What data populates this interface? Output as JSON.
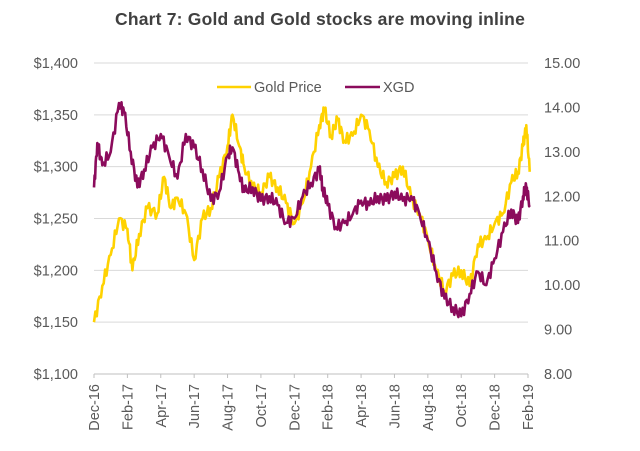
{
  "chart_data": {
    "type": "line",
    "title": "Chart 7: Gold and Gold stocks are moving inline",
    "xlabel": "",
    "ylabel_left": "",
    "ylabel_right": "",
    "x_tick_labels": [
      "Dec-16",
      "Feb-17",
      "Apr-17",
      "Jun-17",
      "Aug-17",
      "Oct-17",
      "Dec-17",
      "Feb-18",
      "Apr-18",
      "Jun-18",
      "Aug-18",
      "Oct-18",
      "Dec-18",
      "Feb-19"
    ],
    "x_unit": "months since Dec-16",
    "xlim": [
      0,
      26
    ],
    "y_left": {
      "ylim": [
        1100,
        1400
      ],
      "ticks": [
        1100,
        1150,
        1200,
        1250,
        1300,
        1350,
        1400
      ],
      "tick_labels": [
        "$1,100",
        "$1,150",
        "$1,200",
        "$1,250",
        "$1,300",
        "$1,350",
        "$1,400"
      ]
    },
    "y_right": {
      "ylim": [
        8,
        15
      ],
      "ticks": [
        8,
        9,
        10,
        11,
        12,
        13,
        14,
        15
      ],
      "tick_labels": [
        "8.00",
        "9.00",
        "10.00",
        "11.00",
        "12.00",
        "13.00",
        "14.00",
        "15.00"
      ]
    },
    "grid": true,
    "legend_position": "top-center",
    "series": [
      {
        "name": "Gold Price",
        "axis": "left",
        "color": "#FFD200",
        "x": [
          0,
          0.5,
          1.0,
          1.5,
          2.0,
          2.3,
          2.7,
          3.2,
          3.8,
          4.2,
          4.6,
          5.0,
          5.5,
          6.0,
          6.5,
          7.0,
          7.5,
          8.0,
          8.3,
          8.7,
          9.0,
          9.5,
          10.0,
          10.5,
          11.0,
          11.5,
          12.0,
          12.5,
          13.0,
          13.5,
          13.8,
          14.2,
          14.6,
          15.0,
          15.5,
          16.0,
          16.5,
          17.0,
          17.5,
          18.0,
          18.5,
          19.0,
          19.5,
          20.0,
          20.5,
          21.0,
          21.5,
          22.0,
          22.5,
          23.0,
          23.5,
          24.0,
          24.5,
          25.0,
          25.4,
          25.7,
          25.9,
          26.1
        ],
        "values": [
          1150,
          1185,
          1215,
          1250,
          1240,
          1200,
          1235,
          1260,
          1255,
          1290,
          1260,
          1270,
          1255,
          1210,
          1250,
          1260,
          1290,
          1320,
          1350,
          1320,
          1300,
          1280,
          1275,
          1290,
          1280,
          1265,
          1245,
          1265,
          1300,
          1340,
          1355,
          1330,
          1345,
          1325,
          1330,
          1350,
          1335,
          1300,
          1285,
          1290,
          1300,
          1270,
          1255,
          1230,
          1200,
          1180,
          1195,
          1200,
          1185,
          1225,
          1230,
          1245,
          1255,
          1285,
          1295,
          1320,
          1340,
          1295
        ]
      },
      {
        "name": "XGD",
        "axis": "right",
        "color": "#8B0B5C",
        "x": [
          0,
          0.2,
          0.5,
          1.0,
          1.5,
          1.8,
          2.2,
          2.6,
          3.0,
          3.5,
          4.0,
          4.5,
          5.0,
          5.5,
          6.0,
          6.5,
          7.0,
          7.5,
          8.0,
          8.3,
          8.7,
          9.0,
          9.5,
          10.0,
          10.5,
          11.0,
          11.5,
          12.0,
          12.5,
          13.0,
          13.5,
          13.7,
          14.0,
          14.5,
          15.0,
          15.5,
          16.0,
          16.5,
          17.0,
          17.5,
          18.0,
          18.5,
          19.0,
          19.5,
          20.0,
          20.5,
          21.0,
          21.5,
          22.0,
          22.5,
          23.0,
          23.5,
          24.0,
          24.5,
          25.0,
          25.4,
          25.7,
          25.9,
          26.1
        ],
        "values": [
          12.2,
          13.2,
          12.7,
          13.0,
          14.1,
          13.9,
          13.0,
          12.2,
          12.6,
          13.1,
          13.4,
          12.9,
          12.4,
          13.4,
          13.1,
          12.6,
          11.9,
          12.1,
          12.9,
          13.1,
          12.5,
          12.1,
          12.2,
          11.9,
          12.0,
          11.8,
          11.4,
          11.5,
          12.0,
          12.3,
          12.6,
          12.2,
          11.8,
          11.3,
          11.4,
          11.6,
          11.9,
          11.8,
          12.0,
          11.9,
          12.1,
          11.9,
          12.0,
          11.6,
          11.0,
          10.3,
          9.7,
          9.5,
          9.3,
          9.8,
          10.3,
          10.0,
          10.6,
          11.2,
          11.7,
          11.4,
          12.0,
          12.2,
          11.8
        ]
      }
    ]
  }
}
